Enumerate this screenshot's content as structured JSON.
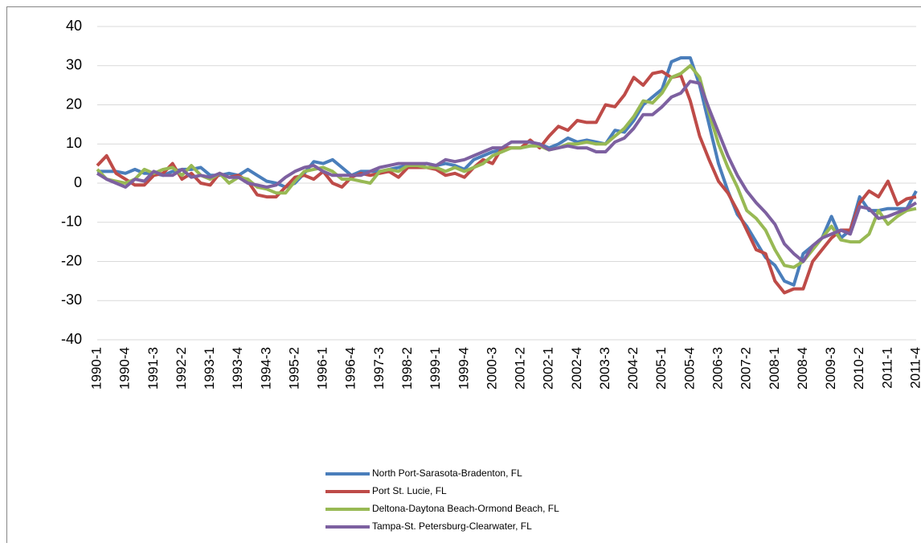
{
  "chart_data": {
    "type": "line",
    "categories": [
      "1990-1",
      null,
      null,
      "1990-4",
      null,
      null,
      "1991-3",
      null,
      null,
      "1992-2",
      null,
      null,
      "1993-1",
      null,
      null,
      "1993-4",
      null,
      null,
      "1994-3",
      null,
      null,
      "1995-2",
      null,
      null,
      "1996-1",
      null,
      null,
      "1996-4",
      null,
      null,
      "1997-3",
      null,
      null,
      "1998-2",
      null,
      null,
      "1999-1",
      null,
      null,
      "1999-4",
      null,
      null,
      "2000-3",
      null,
      null,
      "2001-2",
      null,
      null,
      "2002-1",
      null,
      null,
      "2002-4",
      null,
      null,
      "2003-3",
      null,
      null,
      "2004-2",
      null,
      null,
      "2005-1",
      null,
      null,
      "2005-4",
      null,
      null,
      "2006-3",
      null,
      null,
      "2007-2",
      null,
      null,
      "2008-1",
      null,
      null,
      "2008-4",
      null,
      null,
      "2009-3",
      null,
      null,
      "2010-2",
      null,
      null,
      "2011-1",
      null,
      null,
      "2011-4"
    ],
    "series": [
      {
        "name": "North Port-Sarasota-Bradenton, FL",
        "color": "#4a7ebb",
        "values": [
          3,
          3,
          3,
          2.5,
          3.5,
          2.5,
          2.5,
          2,
          3,
          3.5,
          3.5,
          4,
          2,
          2,
          2.5,
          2,
          3.5,
          2,
          0.5,
          0,
          -1,
          0,
          2.5,
          5.5,
          5,
          6,
          4,
          2,
          3,
          3,
          3,
          3.5,
          4,
          4.5,
          4.5,
          5,
          4.5,
          5,
          4.5,
          3.5,
          6,
          7,
          8,
          8.5,
          9,
          9,
          9.5,
          10,
          9,
          10,
          11.5,
          10.5,
          11,
          10.5,
          10,
          13.5,
          13,
          16,
          20,
          22,
          24,
          31,
          32,
          32,
          25,
          15,
          5,
          -2,
          -8,
          -11,
          -15,
          -19,
          -21,
          -25,
          -26,
          -18,
          -16,
          -14,
          -8.5,
          -14,
          -12,
          -3.5,
          -7,
          -7,
          -6.5,
          -6.5,
          -6.5,
          -2
        ]
      },
      {
        "name": "Port St. Lucie, FL",
        "color": "#be4b48",
        "values": [
          4.5,
          7,
          2.5,
          1,
          -0.5,
          -0.5,
          2,
          2.5,
          5,
          1,
          2.5,
          0,
          -0.5,
          2.5,
          1.5,
          2,
          0.5,
          -3,
          -3.5,
          -3.5,
          -1,
          1.5,
          2,
          1,
          3,
          0,
          -1,
          1.5,
          2.5,
          2,
          2.5,
          3,
          1.5,
          4,
          4,
          4,
          3.5,
          2,
          2.5,
          1.5,
          4,
          6,
          5,
          9,
          9,
          9,
          11,
          9,
          12,
          14.5,
          13.5,
          16,
          15.5,
          15.5,
          20,
          19.5,
          22.5,
          27,
          25,
          28,
          28.5,
          27,
          27.5,
          21,
          12,
          6,
          0.5,
          -2.5,
          -7,
          -12,
          -17,
          -18,
          -25,
          -28,
          -27,
          -27,
          -20,
          -17,
          -14,
          -12,
          -12,
          -5,
          -2,
          -3.5,
          0.5,
          -5.5,
          -4,
          -3.5
        ]
      },
      {
        "name": "Deltona-Daytona Beach-Ormond Beach, FL",
        "color": "#98b954",
        "values": [
          3.5,
          1,
          0.5,
          0,
          1,
          3.5,
          2.5,
          3.5,
          4,
          2,
          4.5,
          2,
          1,
          2.5,
          0,
          1.5,
          1,
          -1,
          -1.5,
          -2.5,
          -2.5,
          0.5,
          3,
          3.5,
          4,
          3,
          1,
          1,
          0.5,
          0,
          3,
          3.5,
          3,
          4.5,
          4.5,
          4,
          4,
          3,
          4,
          3,
          4,
          5,
          7,
          8,
          9,
          9,
          9.5,
          9.5,
          8.5,
          9,
          10,
          10,
          10.5,
          10,
          10,
          12,
          14,
          17,
          21,
          20.5,
          23,
          27,
          28,
          30,
          27,
          18,
          10,
          4,
          -1,
          -7,
          -9,
          -12,
          -17,
          -21,
          -21.5,
          -20,
          -17,
          -14,
          -11,
          -14.5,
          -15,
          -15,
          -13,
          -7,
          -10.5,
          -8.5,
          -7,
          -6.5
        ]
      },
      {
        "name": "Tampa-St. Petersburg-Clearwater, FL",
        "color": "#7d60a0",
        "values": [
          2.5,
          1,
          0,
          -1,
          1,
          0.5,
          3,
          2,
          2,
          3.5,
          1.5,
          2,
          1.5,
          2.5,
          1.5,
          1.5,
          0,
          -0.5,
          -1,
          -0.5,
          1.5,
          3,
          4,
          4.5,
          3,
          2,
          2,
          2,
          2,
          3,
          4,
          4.5,
          5,
          5,
          5,
          5,
          4.5,
          6,
          5.5,
          6,
          7,
          8,
          9,
          9,
          10.5,
          10.5,
          10.5,
          10,
          8.5,
          9,
          9.5,
          9,
          9,
          8,
          8,
          10.5,
          11.5,
          14,
          17.5,
          17.5,
          19.5,
          22,
          23,
          26,
          25.5,
          19,
          13,
          7,
          2,
          -2,
          -5,
          -7.5,
          -10.5,
          -15.5,
          -18,
          -20,
          -16,
          -14,
          -13,
          -12,
          -13,
          -6,
          -6.5,
          -9,
          -8.5,
          -7.5,
          -6.5,
          -5
        ]
      }
    ],
    "ylim": [
      -40,
      40
    ],
    "yticks": [
      -40,
      -30,
      -20,
      -10,
      0,
      10,
      20,
      30,
      40
    ],
    "grid": true
  }
}
